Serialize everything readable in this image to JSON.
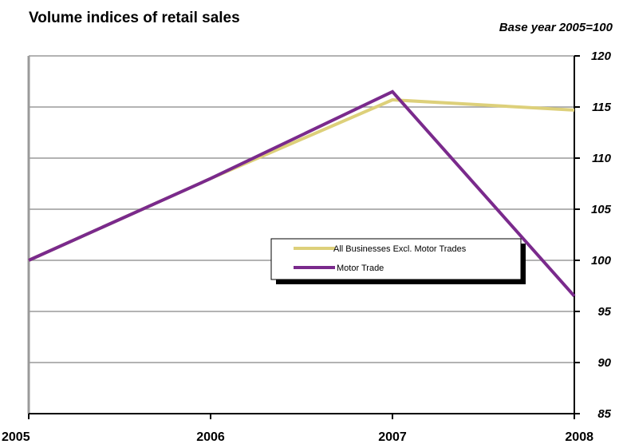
{
  "chart_data": {
    "type": "line",
    "title": "Volume indices of retail sales",
    "subtitle": "Base year 2005=100",
    "x": [
      "2005",
      "2006",
      "2007",
      "2008"
    ],
    "ylim": [
      85,
      120
    ],
    "yticks": [
      85,
      90,
      95,
      100,
      105,
      110,
      115,
      120
    ],
    "grid": true,
    "legend_position": "center-right",
    "series": [
      {
        "name": "All Businesses Excl. Motor Trades",
        "color": "#ddd07a",
        "values": [
          100,
          108,
          115.7,
          114.7
        ]
      },
      {
        "name": "Motor Trade",
        "color": "#7a2a8c",
        "values": [
          100,
          108,
          116.5,
          96.5
        ]
      }
    ]
  }
}
